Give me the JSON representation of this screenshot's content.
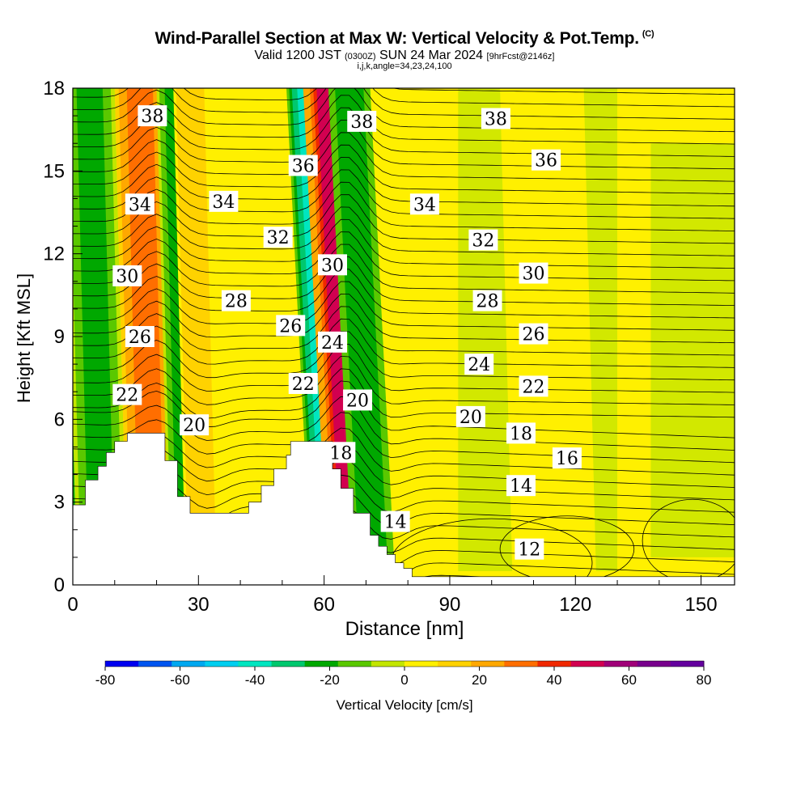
{
  "header": {
    "title": "Wind-Parallel Section at Max W: Vertical Velocity & Pot.Temp.",
    "copyright": "(C)",
    "valid_prefix": "Valid 1200 JST",
    "valid_utc": "(0300Z)",
    "valid_date": "SUN 24 Mar 2024",
    "forecast": "[9hrFcst@2146z]",
    "params": "i,j,k,angle=34,23,24,100"
  },
  "chart_data": {
    "type": "heatmap",
    "xlabel": "Distance [nm]",
    "ylabel": "Height [Kft MSL]",
    "xlim": [
      0,
      158
    ],
    "ylim": [
      0,
      18
    ],
    "xticks": [
      0,
      30,
      60,
      90,
      120,
      150
    ],
    "yticks": [
      0,
      3,
      6,
      9,
      12,
      15,
      18
    ],
    "colorbar": {
      "label": "Vertical Velocity [cm/s]",
      "ticks": [
        -80,
        -60,
        -40,
        -20,
        0,
        20,
        40,
        60,
        80
      ],
      "colors": [
        "#0000f0",
        "#0055f0",
        "#00a8f0",
        "#00cff0",
        "#00e6c0",
        "#00c86e",
        "#00a800",
        "#5ac800",
        "#c3e600",
        "#fff000",
        "#ffd200",
        "#ffa800",
        "#ff6e00",
        "#f02800",
        "#d20050",
        "#a00078",
        "#78008c",
        "#64009e"
      ]
    },
    "w_columns": [
      {
        "x": 3,
        "w": -45,
        "xmin": 0,
        "xmax": 6
      },
      {
        "x": 7,
        "w": -25,
        "xmin": 0,
        "xmax": 12
      },
      {
        "x": 19,
        "w": 40,
        "xmin": 16,
        "xmax": 28
      },
      {
        "x": 27,
        "w": -25,
        "xmin": 24,
        "xmax": 32
      },
      {
        "x": 31,
        "w": 20,
        "xmin": 28,
        "xmax": 36
      },
      {
        "x": 61,
        "w": -45,
        "xmin": 58,
        "xmax": 66
      },
      {
        "x": 66,
        "w": 55,
        "xmin": 62,
        "xmax": 72
      },
      {
        "x": 72,
        "w": -30,
        "xmin": 68,
        "xmax": 78
      },
      {
        "x": 115,
        "w": 5,
        "xmin": 105,
        "xmax": 125
      }
    ],
    "terrain_kft": [
      [
        0,
        2.9
      ],
      [
        3,
        2.9
      ],
      [
        3,
        3.8
      ],
      [
        6,
        3.8
      ],
      [
        6,
        4.3
      ],
      [
        8,
        4.3
      ],
      [
        8,
        4.8
      ],
      [
        10,
        4.8
      ],
      [
        10,
        5.2
      ],
      [
        13,
        5.2
      ],
      [
        13,
        5.5
      ],
      [
        22,
        5.5
      ],
      [
        22,
        4.5
      ],
      [
        25,
        4.5
      ],
      [
        25,
        3.2
      ],
      [
        28,
        3.2
      ],
      [
        28,
        2.6
      ],
      [
        42,
        2.6
      ],
      [
        42,
        3.0
      ],
      [
        45,
        3.0
      ],
      [
        45,
        3.6
      ],
      [
        48,
        3.6
      ],
      [
        48,
        4.2
      ],
      [
        51,
        4.2
      ],
      [
        51,
        4.7
      ],
      [
        52,
        4.7
      ],
      [
        52,
        5.2
      ],
      [
        62,
        5.2
      ],
      [
        62,
        4.2
      ],
      [
        64,
        4.2
      ],
      [
        64,
        3.5
      ],
      [
        67,
        3.5
      ],
      [
        67,
        2.6
      ],
      [
        71,
        2.6
      ],
      [
        71,
        1.8
      ],
      [
        73,
        1.8
      ],
      [
        73,
        1.4
      ],
      [
        75,
        1.4
      ],
      [
        75,
        1.1
      ],
      [
        77,
        1.1
      ],
      [
        77,
        0.8
      ],
      [
        79,
        0.8
      ],
      [
        79,
        0.6
      ],
      [
        81,
        0.6
      ],
      [
        81,
        0.3
      ],
      [
        158,
        0.3
      ]
    ],
    "potential_temperature_labels": [
      {
        "value": "38",
        "x": 19,
        "y": 17.0
      },
      {
        "value": "36",
        "x": 55,
        "y": 15.2
      },
      {
        "value": "34",
        "x": 16,
        "y": 13.8
      },
      {
        "value": "34",
        "x": 36,
        "y": 13.9
      },
      {
        "value": "32",
        "x": 49,
        "y": 12.6
      },
      {
        "value": "30",
        "x": 13,
        "y": 11.2
      },
      {
        "value": "28",
        "x": 39,
        "y": 10.3
      },
      {
        "value": "26",
        "x": 52,
        "y": 9.4
      },
      {
        "value": "26",
        "x": 16,
        "y": 9.0
      },
      {
        "value": "24",
        "x": 62,
        "y": 8.8
      },
      {
        "value": "22",
        "x": 13,
        "y": 6.9
      },
      {
        "value": "22",
        "x": 55,
        "y": 7.3
      },
      {
        "value": "20",
        "x": 29,
        "y": 5.8
      },
      {
        "value": "18",
        "x": 64,
        "y": 4.8
      },
      {
        "value": "38",
        "x": 69,
        "y": 16.8
      },
      {
        "value": "30",
        "x": 62,
        "y": 11.6
      },
      {
        "value": "20",
        "x": 68,
        "y": 6.7
      },
      {
        "value": "38",
        "x": 101,
        "y": 16.9
      },
      {
        "value": "36",
        "x": 113,
        "y": 15.4
      },
      {
        "value": "34",
        "x": 84,
        "y": 13.8
      },
      {
        "value": "32",
        "x": 98,
        "y": 12.5
      },
      {
        "value": "30",
        "x": 110,
        "y": 11.3
      },
      {
        "value": "28",
        "x": 99,
        "y": 10.3
      },
      {
        "value": "26",
        "x": 110,
        "y": 9.1
      },
      {
        "value": "24",
        "x": 97,
        "y": 8.0
      },
      {
        "value": "22",
        "x": 110,
        "y": 7.2
      },
      {
        "value": "20",
        "x": 95,
        "y": 6.1
      },
      {
        "value": "18",
        "x": 107,
        "y": 5.5
      },
      {
        "value": "16",
        "x": 118,
        "y": 4.6
      },
      {
        "value": "14",
        "x": 107,
        "y": 3.6
      },
      {
        "value": "14",
        "x": 77,
        "y": 2.3
      },
      {
        "value": "12",
        "x": 109,
        "y": 1.3
      }
    ]
  }
}
